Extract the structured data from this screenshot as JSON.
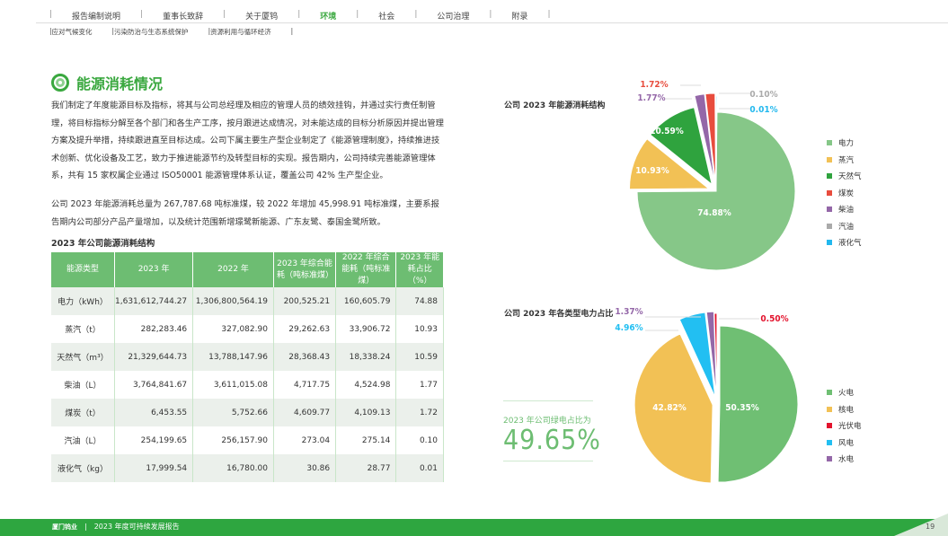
{
  "nav": {
    "items": [
      "报告编制说明",
      "董事长致辞",
      "关于厦钨",
      "环境",
      "社会",
      "公司治理",
      "附录"
    ],
    "active": 3,
    "sub": [
      "应对气候变化",
      "污染防治与生态系统保护",
      "资源利用与循环经济"
    ]
  },
  "section_title": "能源消耗情况",
  "paragraphs": [
    "我们制定了年度能源目标及指标，将其与公司总经理及相应的管理人员的绩效挂钩，并通过实行责任制管理，将目标指标分解至各个部门和各生产工序，按月跟进达成情况，对未能达成的目标分析原因并提出管理方案及提升举措，持续跟进直至目标达成。公司下属主要生产型企业制定了《能源管理制度》，持续推进技术创新、优化设备及工艺，致力于推进能源节约及转型目标的实现。报告期内，公司持续完善能源管理体系，共有 15 家权属企业通过 ISO50001 能源管理体系认证，覆盖公司 42% 生产型企业。",
    "公司 2023 年能源消耗总量为 267,787.68 吨标准煤，较 2022 年增加 45,998.91 吨标准煤，主要系报告期内公司部分产品产量增加，以及统计范围新增璟鹭新能源、广东友鹭、泰国金鹭所致。"
  ],
  "table": {
    "title": "2023 年公司能源消耗结构",
    "headers": [
      "能源类型",
      "2023 年",
      "2022 年",
      "2023 年综合能耗（吨标准煤）",
      "2022 年综合能耗（吨标准煤）",
      "2023 年能耗占比（%）"
    ],
    "rows": [
      [
        "电力（kWh）",
        "1,631,612,744.27",
        "1,306,800,564.19",
        "200,525.21",
        "160,605.79",
        "74.88"
      ],
      [
        "蒸汽（t）",
        "282,283.46",
        "327,082.90",
        "29,262.63",
        "33,906.72",
        "10.93"
      ],
      [
        "天然气（m³）",
        "21,329,644.73",
        "13,788,147.96",
        "28,368.43",
        "18,338.24",
        "10.59"
      ],
      [
        "柴油（L）",
        "3,764,841.67",
        "3,611,015.08",
        "4,717.75",
        "4,524.98",
        "1.77"
      ],
      [
        "煤炭（t）",
        "6,453.55",
        "5,752.66",
        "4,609.77",
        "4,109.13",
        "1.72"
      ],
      [
        "汽油（L）",
        "254,199.65",
        "256,157.90",
        "273.04",
        "275.14",
        "0.10"
      ],
      [
        "液化气（kg）",
        "17,999.54",
        "16,780.00",
        "30.86",
        "28.77",
        "0.01"
      ]
    ]
  },
  "chart_data": [
    {
      "type": "pie",
      "title": "公司 2023 年能源消耗结构",
      "labels": [
        "电力",
        "蒸汽",
        "天然气",
        "煤炭",
        "柴油",
        "汽油",
        "液化气"
      ],
      "values": [
        74.88,
        10.93,
        10.59,
        1.72,
        1.77,
        0.1,
        0.01
      ],
      "value_labels": [
        "74.88%",
        "10.93%",
        "10.59%",
        "1.72%",
        "1.77%",
        "0.10%",
        "0.01%"
      ],
      "colors": [
        "#86c788",
        "#f2c155",
        "#2fa33e",
        "#e84c3d",
        "#9467a8",
        "#aaaaaa",
        "#22b8ee"
      ],
      "order": [
        0,
        1,
        2,
        4,
        3,
        5,
        6
      ],
      "legend": "right"
    },
    {
      "type": "pie",
      "title": "公司 2023 年各类型电力占比",
      "labels": [
        "火电",
        "核电",
        "光伏电",
        "风电",
        "水电"
      ],
      "values": [
        50.35,
        42.82,
        0.5,
        4.96,
        1.37
      ],
      "value_labels": [
        "50.35%",
        "42.82%",
        "0.50%",
        "4.96%",
        "1.37%"
      ],
      "colors": [
        "#6fbf73",
        "#f2c155",
        "#e3132d",
        "#22bff2",
        "#9467a8"
      ],
      "order": [
        0,
        1,
        3,
        4,
        2
      ],
      "legend": "right"
    }
  ],
  "green_power": {
    "label": "2023 年公司绿电占比为",
    "value": "49.65%"
  },
  "footer": {
    "logo": "厦门钨业",
    "title": "2023 年度可持续发展报告",
    "page": "19"
  }
}
